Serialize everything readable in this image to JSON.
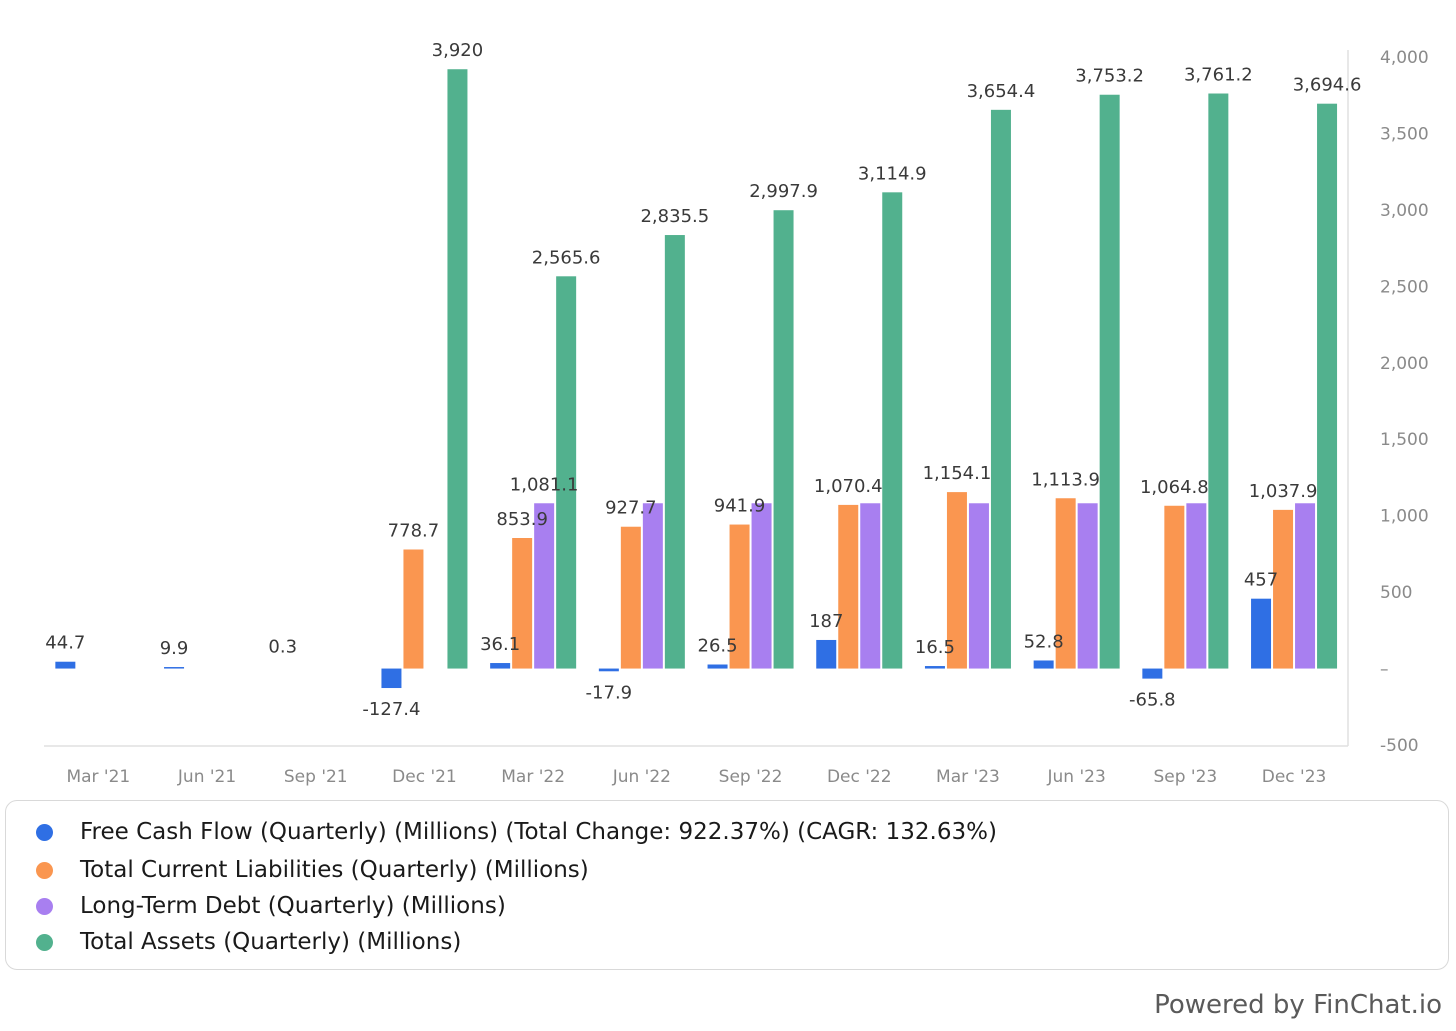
{
  "chart_data": {
    "type": "bar",
    "categories": [
      "Mar '21",
      "Jun '21",
      "Sep '21",
      "Dec '21",
      "Mar '22",
      "Jun '22",
      "Sep '22",
      "Dec '22",
      "Mar '23",
      "Jun '23",
      "Sep '23",
      "Dec '23"
    ],
    "series": [
      {
        "name": "Free Cash Flow (Quarterly) (Millions) (Total Change: 922.37%) (CAGR: 132.63%)",
        "color": "#2f6fe4",
        "values": [
          44.7,
          9.9,
          0.3,
          -127.4,
          36.1,
          -17.9,
          26.5,
          187,
          16.5,
          52.8,
          -65.8,
          457
        ],
        "labels": [
          "44.7",
          "9.9",
          "0.3",
          "-127.4",
          "36.1",
          "-17.9",
          "26.5",
          "187",
          "16.5",
          "52.8",
          "-65.8",
          "457"
        ]
      },
      {
        "name": "Total Current Liabilities (Quarterly) (Millions)",
        "color": "#fa9650",
        "values": [
          null,
          null,
          null,
          778.7,
          853.9,
          927.7,
          941.9,
          1070.4,
          1154.1,
          1113.9,
          1064.8,
          1037.9
        ],
        "labels": [
          "",
          "",
          "",
          "778.7",
          "853.9",
          "927.7",
          "941.9",
          "1,070.4",
          "1,154.1",
          "1,113.9",
          "1,064.8",
          "1,037.9"
        ]
      },
      {
        "name": "Long-Term Debt (Quarterly) (Millions)",
        "color": "#a87ff0",
        "values": [
          null,
          null,
          null,
          null,
          1081.1,
          1081.1,
          1081.1,
          1081.1,
          1081.1,
          1081.1,
          1081.1,
          1081.1
        ],
        "labels": [
          "",
          "",
          "",
          "",
          "1,081.1",
          "",
          "",
          "",
          "",
          "",
          "",
          ""
        ]
      },
      {
        "name": "Total Assets (Quarterly) (Millions)",
        "color": "#52b18e",
        "values": [
          null,
          null,
          null,
          3920,
          2565.6,
          2835.5,
          2997.9,
          3114.9,
          3654.4,
          3753.2,
          3761.2,
          3694.6
        ],
        "labels": [
          "",
          "",
          "",
          "3,920",
          "2,565.6",
          "2,835.5",
          "2,997.9",
          "3,114.9",
          "3,654.4",
          "3,753.2",
          "3,761.2",
          "3,694.6"
        ]
      }
    ],
    "y_axis": {
      "position": "right",
      "ylim": [
        -500,
        4000
      ],
      "ticks": [
        -500,
        0,
        500,
        1000,
        1500,
        2000,
        2500,
        3000,
        3500,
        4000
      ],
      "tick_labels": [
        "-500",
        "–",
        "500",
        "1,000",
        "1,500",
        "2,000",
        "2,500",
        "3,000",
        "3,500",
        "4,000"
      ]
    },
    "grid": false,
    "legend_placement": "bottom"
  },
  "brand": {
    "text": "Powered by FinChat.io"
  }
}
